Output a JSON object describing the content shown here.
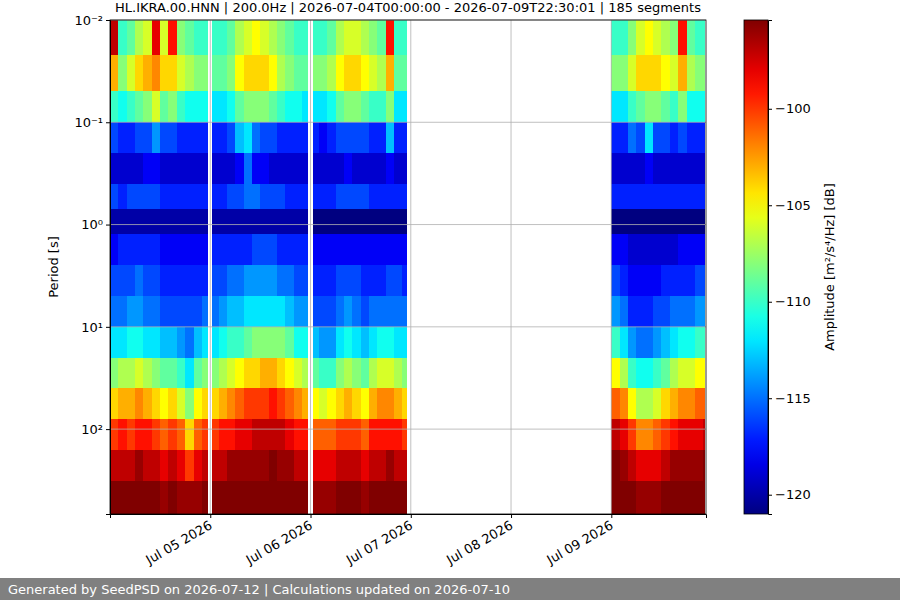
{
  "chart_data": {
    "type": "heatmap",
    "title": "HL.IKRA.00.HNN | 200.0Hz | 2026-07-04T00:00:00 - 2026-07-09T22:30:01 | 185 segments",
    "footer": "Generated by SeedPSD on 2026-07-12 | Calculations updated on 2026-07-10",
    "y_label": "Period [s]",
    "colorbar_label": "Amplitude [m²/s⁴/Hz] [dB]",
    "log": "y",
    "grid": true,
    "color": "jet",
    "xlim": [
      "2026-07-04T00:00",
      "2026-07-09T22:40"
    ],
    "xticks": [
      {
        "value": "2026-07-05T00:00",
        "label": "Jul 05 2026"
      },
      {
        "value": "2026-07-06T00:00",
        "label": "Jul 06 2026"
      },
      {
        "value": "2026-07-07T00:00",
        "label": "Jul 07 2026"
      },
      {
        "value": "2026-07-08T00:00",
        "label": "Jul 08 2026"
      },
      {
        "value": "2026-07-09T00:00",
        "label": "Jul 09 2026"
      }
    ],
    "ylim": [
      0.01,
      676
    ],
    "yticks": [
      {
        "value": 0.01,
        "label": "10⁻²"
      },
      {
        "value": 0.1,
        "label": "10⁻¹"
      },
      {
        "value": 1,
        "label": "10⁰"
      },
      {
        "value": 10,
        "label": "10¹"
      },
      {
        "value": 100,
        "label": "10²"
      }
    ],
    "colorbar_range": [
      -121,
      -95.4
    ],
    "colorbar_ticks": [
      {
        "value": -100,
        "label": "−100"
      },
      {
        "value": -105,
        "label": "−105"
      },
      {
        "value": -110,
        "label": "−110"
      },
      {
        "value": -115,
        "label": "−115"
      },
      {
        "value": -120,
        "label": "−120"
      }
    ],
    "period_edges": [
      0.01,
      0.022,
      0.05,
      0.1,
      0.2,
      0.4,
      0.7,
      1.25,
      2.5,
      5,
      10,
      20,
      40,
      80,
      160,
      320,
      676
    ],
    "columns": [
      {
        "start": "2026-07-04T00:00",
        "end": "2026-07-04T02:00",
        "values": [
          -97,
          -103,
          -110,
          -116,
          -119,
          -116,
          -120,
          -118,
          -116,
          -115,
          -112,
          -108,
          -104,
          -100,
          -97,
          -95
        ]
      },
      {
        "start": "2026-07-04T02:00",
        "end": "2026-07-04T04:00",
        "values": [
          -110,
          -108,
          -111,
          -117,
          -119,
          -117,
          -120,
          -117,
          -116,
          -115,
          -112,
          -107,
          -103,
          -99,
          -97,
          -95
        ]
      },
      {
        "start": "2026-07-04T04:00",
        "end": "2026-07-04T06:00",
        "values": [
          -109,
          -106,
          -110,
          -117,
          -119,
          -116,
          -120,
          -117,
          -116,
          -114,
          -111,
          -107,
          -103,
          -100,
          -97,
          -95
        ]
      },
      {
        "start": "2026-07-04T06:00",
        "end": "2026-07-04T08:00",
        "values": [
          -107,
          -104,
          -109,
          -116,
          -119,
          -116,
          -120,
          -117,
          -115,
          -114,
          -111,
          -106,
          -102,
          -99,
          -96,
          -95
        ]
      },
      {
        "start": "2026-07-04T08:00",
        "end": "2026-07-04T10:00",
        "values": [
          -106,
          -103,
          -108,
          -116,
          -118,
          -116,
          -120,
          -117,
          -116,
          -115,
          -112,
          -107,
          -103,
          -99,
          -97,
          -95
        ]
      },
      {
        "start": "2026-07-04T10:00",
        "end": "2026-07-04T12:00",
        "values": [
          -98,
          -102,
          -106,
          -114,
          -118,
          -116,
          -120,
          -117,
          -116,
          -115,
          -112,
          -108,
          -104,
          -100,
          -97,
          -95
        ]
      },
      {
        "start": "2026-07-04T12:00",
        "end": "2026-07-04T14:00",
        "values": [
          -106,
          -104,
          -109,
          -116,
          -119,
          -117,
          -120,
          -118,
          -117,
          -116,
          -113,
          -109,
          -105,
          -101,
          -98,
          -96
        ]
      },
      {
        "start": "2026-07-04T14:00",
        "end": "2026-07-04T16:00",
        "values": [
          -99,
          -104,
          -108,
          -116,
          -119,
          -117,
          -120,
          -118,
          -117,
          -116,
          -113,
          -109,
          -104,
          -100,
          -97,
          -95
        ]
      },
      {
        "start": "2026-07-04T16:00",
        "end": "2026-07-04T18:00",
        "values": [
          -108,
          -106,
          -110,
          -117,
          -119,
          -117,
          -120,
          -118,
          -117,
          -116,
          -114,
          -110,
          -106,
          -101,
          -98,
          -96
        ]
      },
      {
        "start": "2026-07-04T18:00",
        "end": "2026-07-04T20:00",
        "values": [
          -109,
          -107,
          -111,
          -117,
          -119,
          -117,
          -120,
          -118,
          -117,
          -116,
          -115,
          -112,
          -108,
          -104,
          -100,
          -96
        ]
      },
      {
        "start": "2026-07-04T20:00",
        "end": "2026-07-04T22:00",
        "values": [
          -110,
          -108,
          -111,
          -117,
          -119,
          -117,
          -120,
          -118,
          -117,
          -116,
          -113,
          -109,
          -105,
          -101,
          -98,
          -96
        ]
      },
      {
        "start": "2026-07-04T22:00",
        "end": "2026-07-04T23:30",
        "values": [
          -110,
          -108,
          -111,
          -117,
          -119,
          -117,
          -120,
          -118,
          -117,
          -115,
          -112,
          -108,
          -104,
          -100,
          -97,
          -95
        ]
      },
      {
        "start": "2026-07-05T00:30",
        "end": "2026-07-05T02:00",
        "values": [
          -110,
          -109,
          -112,
          -117,
          -119,
          -117,
          -120,
          -117,
          -116,
          -115,
          -112,
          -108,
          -104,
          -100,
          -97,
          -95
        ]
      },
      {
        "start": "2026-07-05T02:00",
        "end": "2026-07-05T04:00",
        "values": [
          -110,
          -109,
          -112,
          -117,
          -119,
          -117,
          -120,
          -117,
          -116,
          -114,
          -111,
          -107,
          -103,
          -99,
          -97,
          -95
        ]
      },
      {
        "start": "2026-07-05T04:00",
        "end": "2026-07-05T06:00",
        "values": [
          -109,
          -108,
          -111,
          -116,
          -119,
          -116,
          -120,
          -117,
          -115,
          -113,
          -110,
          -106,
          -102,
          -99,
          -96,
          -95
        ]
      },
      {
        "start": "2026-07-05T06:00",
        "end": "2026-07-05T08:00",
        "values": [
          -107,
          -105,
          -109,
          -113,
          -118,
          -116,
          -120,
          -117,
          -115,
          -113,
          -110,
          -105,
          -101,
          -98,
          -96,
          -95
        ]
      },
      {
        "start": "2026-07-05T08:00",
        "end": "2026-07-05T10:00",
        "values": [
          -106,
          -104,
          -108,
          -112,
          -115,
          -115,
          -120,
          -117,
          -114,
          -112,
          -109,
          -104,
          -100,
          -98,
          -96,
          -95
        ]
      },
      {
        "start": "2026-07-05T10:00",
        "end": "2026-07-05T12:00",
        "values": [
          -105,
          -104,
          -108,
          -115,
          -118,
          -115,
          -120,
          -116,
          -114,
          -112,
          -108,
          -104,
          -100,
          -97,
          -96,
          -95
        ]
      },
      {
        "start": "2026-07-05T12:00",
        "end": "2026-07-05T14:00",
        "values": [
          -106,
          -104,
          -108,
          -116,
          -118,
          -116,
          -120,
          -116,
          -114,
          -112,
          -108,
          -103,
          -100,
          -97,
          -96,
          -95
        ]
      },
      {
        "start": "2026-07-05T14:00",
        "end": "2026-07-05T16:00",
        "values": [
          -107,
          -105,
          -109,
          -116,
          -119,
          -116,
          -120,
          -116,
          -114,
          -112,
          -108,
          -103,
          -99,
          -97,
          -95,
          -95
        ]
      },
      {
        "start": "2026-07-05T16:00",
        "end": "2026-07-05T18:00",
        "values": [
          -108,
          -107,
          -110,
          -117,
          -119,
          -116,
          -120,
          -117,
          -115,
          -112,
          -108,
          -104,
          -100,
          -97,
          -96,
          -95
        ]
      },
      {
        "start": "2026-07-05T18:00",
        "end": "2026-07-05T20:00",
        "values": [
          -109,
          -108,
          -111,
          -117,
          -119,
          -117,
          -120,
          -117,
          -115,
          -113,
          -109,
          -105,
          -101,
          -98,
          -96,
          -95
        ]
      },
      {
        "start": "2026-07-05T20:00",
        "end": "2026-07-05T22:00",
        "values": [
          -110,
          -109,
          -111,
          -117,
          -119,
          -117,
          -120,
          -117,
          -116,
          -114,
          -111,
          -106,
          -102,
          -99,
          -97,
          -95
        ]
      },
      {
        "start": "2026-07-05T22:00",
        "end": "2026-07-05T23:30",
        "values": [
          -110,
          -109,
          -112,
          -117,
          -119,
          -117,
          -120,
          -117,
          -116,
          -114,
          -111,
          -107,
          -103,
          -99,
          -97,
          -95
        ]
      },
      {
        "start": "2026-07-06T00:30",
        "end": "2026-07-06T02:00",
        "values": [
          -110,
          -108,
          -112,
          -117,
          -119,
          -117,
          -121,
          -118,
          -117,
          -116,
          -113,
          -109,
          -105,
          -101,
          -98,
          -96
        ]
      },
      {
        "start": "2026-07-06T02:00",
        "end": "2026-07-06T04:00",
        "values": [
          -110,
          -108,
          -112,
          -118,
          -119,
          -117,
          -121,
          -118,
          -117,
          -116,
          -114,
          -110,
          -106,
          -101,
          -98,
          -96
        ]
      },
      {
        "start": "2026-07-06T04:00",
        "end": "2026-07-06T06:00",
        "values": [
          -109,
          -107,
          -111,
          -117,
          -119,
          -117,
          -121,
          -118,
          -117,
          -116,
          -114,
          -110,
          -105,
          -101,
          -98,
          -96
        ]
      },
      {
        "start": "2026-07-06T06:00",
        "end": "2026-07-06T08:00",
        "values": [
          -107,
          -105,
          -109,
          -116,
          -119,
          -116,
          -121,
          -118,
          -116,
          -115,
          -112,
          -108,
          -104,
          -100,
          -97,
          -95
        ]
      },
      {
        "start": "2026-07-06T08:00",
        "end": "2026-07-06T10:00",
        "values": [
          -106,
          -104,
          -108,
          -116,
          -118,
          -116,
          -121,
          -118,
          -116,
          -114,
          -111,
          -107,
          -103,
          -100,
          -97,
          -95
        ]
      },
      {
        "start": "2026-07-06T10:00",
        "end": "2026-07-06T12:00",
        "values": [
          -106,
          -104,
          -108,
          -116,
          -119,
          -116,
          -121,
          -118,
          -116,
          -115,
          -112,
          -108,
          -104,
          -100,
          -97,
          -95
        ]
      },
      {
        "start": "2026-07-06T12:00",
        "end": "2026-07-06T14:00",
        "values": [
          -107,
          -105,
          -109,
          -116,
          -119,
          -116,
          -121,
          -118,
          -117,
          -116,
          -113,
          -109,
          -105,
          -101,
          -98,
          -96
        ]
      },
      {
        "start": "2026-07-06T14:00",
        "end": "2026-07-06T16:00",
        "values": [
          -108,
          -106,
          -110,
          -117,
          -119,
          -117,
          -121,
          -118,
          -117,
          -115,
          -112,
          -107,
          -103,
          -99,
          -97,
          -95
        ]
      },
      {
        "start": "2026-07-06T16:00",
        "end": "2026-07-06T18:00",
        "values": [
          -109,
          -107,
          -110,
          -117,
          -119,
          -117,
          -121,
          -118,
          -117,
          -115,
          -111,
          -106,
          -102,
          -99,
          -97,
          -95
        ]
      },
      {
        "start": "2026-07-06T18:00",
        "end": "2026-07-06T20:00",
        "values": [
          -99,
          -103,
          -108,
          -113,
          -118,
          -117,
          -121,
          -118,
          -116,
          -115,
          -111,
          -106,
          -102,
          -99,
          -96,
          -95
        ]
      },
      {
        "start": "2026-07-06T20:00",
        "end": "2026-07-06T22:00",
        "values": [
          -110,
          -109,
          -112,
          -117,
          -119,
          -117,
          -121,
          -118,
          -116,
          -115,
          -112,
          -107,
          -103,
          -99,
          -97,
          -95
        ]
      },
      {
        "start": "2026-07-06T22:00",
        "end": "2026-07-06T23:00",
        "values": [
          -110,
          -109,
          -112,
          -117,
          -119,
          -117,
          -121,
          -118,
          -117,
          -115,
          -112,
          -108,
          -104,
          -100,
          -97,
          -95
        ]
      },
      {
        "start": "2026-07-09T00:00",
        "end": "2026-07-09T02:00",
        "values": [
          -110,
          -108,
          -112,
          -117,
          -119,
          -117,
          -121,
          -118,
          -116,
          -114,
          -110,
          -105,
          -101,
          -97,
          -95,
          -95
        ]
      },
      {
        "start": "2026-07-09T02:00",
        "end": "2026-07-09T04:00",
        "values": [
          -110,
          -108,
          -112,
          -117,
          -119,
          -117,
          -121,
          -118,
          -117,
          -115,
          -112,
          -107,
          -102,
          -98,
          -96,
          -95
        ]
      },
      {
        "start": "2026-07-09T04:00",
        "end": "2026-07-09T06:00",
        "values": [
          -108,
          -106,
          -110,
          -115,
          -119,
          -117,
          -121,
          -119,
          -118,
          -117,
          -114,
          -110,
          -105,
          -100,
          -97,
          -95
        ]
      },
      {
        "start": "2026-07-09T06:00",
        "end": "2026-07-09T08:00",
        "values": [
          -106,
          -104,
          -109,
          -116,
          -119,
          -117,
          -121,
          -119,
          -118,
          -117,
          -115,
          -111,
          -107,
          -102,
          -98,
          -96
        ]
      },
      {
        "start": "2026-07-09T08:00",
        "end": "2026-07-09T10:00",
        "values": [
          -105,
          -104,
          -108,
          -112,
          -118,
          -117,
          -121,
          -119,
          -118,
          -117,
          -115,
          -111,
          -107,
          -102,
          -98,
          -96
        ]
      },
      {
        "start": "2026-07-09T10:00",
        "end": "2026-07-09T12:00",
        "values": [
          -106,
          -104,
          -108,
          -116,
          -119,
          -117,
          -121,
          -119,
          -118,
          -116,
          -114,
          -110,
          -106,
          -101,
          -98,
          -96
        ]
      },
      {
        "start": "2026-07-09T12:00",
        "end": "2026-07-09T14:00",
        "values": [
          -107,
          -105,
          -109,
          -116,
          -119,
          -117,
          -121,
          -119,
          -117,
          -116,
          -113,
          -109,
          -104,
          -100,
          -97,
          -95
        ]
      },
      {
        "start": "2026-07-09T14:00",
        "end": "2026-07-09T16:00",
        "values": [
          -108,
          -106,
          -110,
          -117,
          -119,
          -117,
          -121,
          -119,
          -117,
          -115,
          -112,
          -107,
          -103,
          -99,
          -96,
          -95
        ]
      },
      {
        "start": "2026-07-09T16:00",
        "end": "2026-07-09T18:00",
        "values": [
          -99,
          -103,
          -108,
          -116,
          -119,
          -117,
          -121,
          -118,
          -117,
          -115,
          -111,
          -106,
          -102,
          -98,
          -96,
          -95
        ]
      },
      {
        "start": "2026-07-09T18:00",
        "end": "2026-07-09T20:00",
        "values": [
          -109,
          -107,
          -111,
          -117,
          -119,
          -117,
          -121,
          -118,
          -117,
          -115,
          -111,
          -106,
          -102,
          -98,
          -96,
          -95
        ]
      },
      {
        "start": "2026-07-09T20:00",
        "end": "2026-07-09T22:00",
        "values": [
          -110,
          -108,
          -111,
          -117,
          -119,
          -117,
          -121,
          -118,
          -116,
          -114,
          -110,
          -105,
          -101,
          -98,
          -96,
          -95
        ]
      },
      {
        "start": "2026-07-09T22:00",
        "end": "2026-07-09T22:30",
        "values": [
          -110,
          -108,
          -111,
          -117,
          -119,
          -117,
          -121,
          -118,
          -116,
          -114,
          -110,
          -105,
          -101,
          -97,
          -95,
          -95
        ]
      }
    ]
  }
}
